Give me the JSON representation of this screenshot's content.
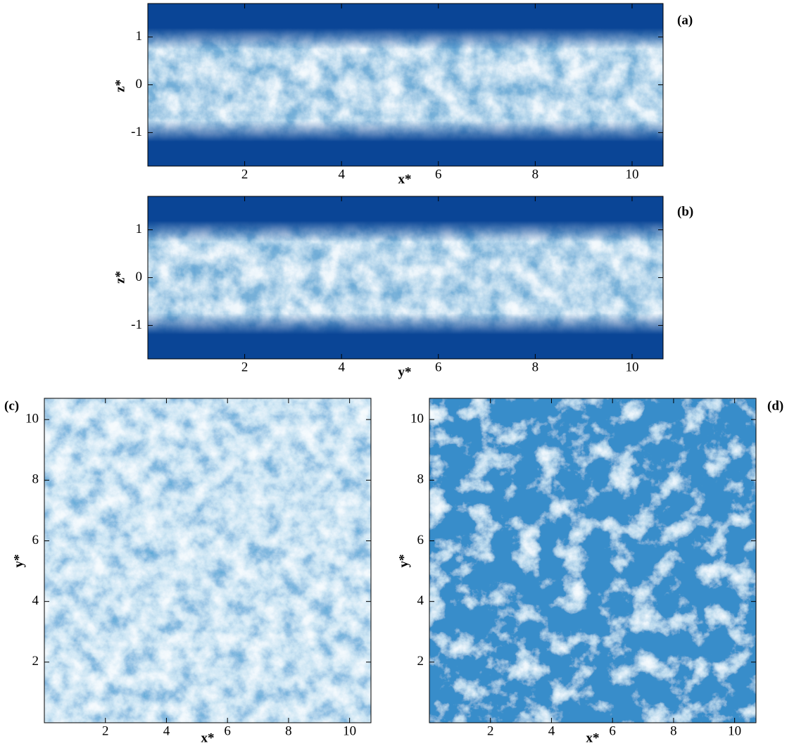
{
  "chart_data": [
    {
      "type": "contour",
      "panel_label": "(a)",
      "x_label": "x*",
      "y_label": "z*",
      "xlim": [
        0,
        10.64
      ],
      "ylim": [
        -1.7,
        1.7
      ],
      "xticks": [
        2,
        4,
        6,
        8,
        10
      ],
      "yticks": [
        -1,
        0,
        1
      ]
    },
    {
      "type": "contour",
      "panel_label": "(b)",
      "x_label": "y*",
      "y_label": "z*",
      "xlim": [
        0,
        10.64
      ],
      "ylim": [
        -1.7,
        1.7
      ],
      "xticks": [
        2,
        4,
        6,
        8,
        10
      ],
      "yticks": [
        -1,
        0,
        1
      ]
    },
    {
      "type": "contour",
      "panel_label": "(c)",
      "x_label": "x*",
      "y_label": "y*",
      "xlim": [
        0,
        10.7
      ],
      "ylim": [
        0,
        10.7
      ],
      "xticks": [
        2,
        4,
        6,
        8,
        10
      ],
      "yticks": [
        2,
        4,
        6,
        8,
        10
      ]
    },
    {
      "type": "contour",
      "panel_label": "(d)",
      "x_label": "x*",
      "y_label": "y*",
      "xlim": [
        0,
        10.7
      ],
      "ylim": [
        0,
        10.7
      ],
      "xticks": [
        2,
        4,
        6,
        8,
        10
      ],
      "yticks": [
        2,
        4,
        6,
        8,
        10
      ]
    }
  ]
}
